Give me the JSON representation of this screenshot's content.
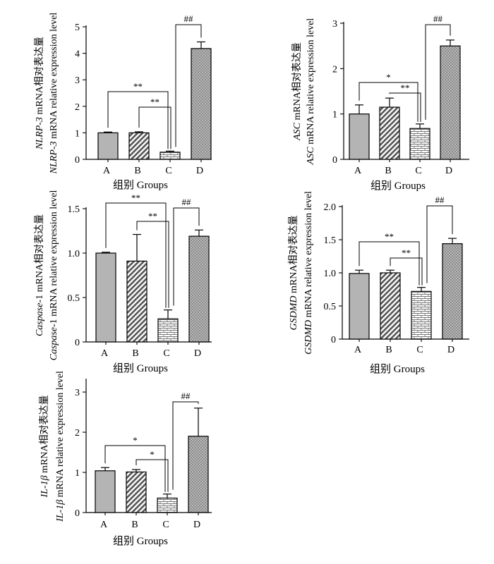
{
  "chart_data": [
    {
      "type": "bar",
      "categories": [
        "A",
        "B",
        "C",
        "D"
      ],
      "values": [
        1.0,
        1.0,
        0.27,
        4.18
      ],
      "errors": [
        0.03,
        0.04,
        0.04,
        0.25
      ],
      "ylim": [
        0,
        5
      ],
      "yticks": [
        "0",
        "1",
        "2",
        "3",
        "4",
        "5"
      ],
      "xlabel": "组别 Groups",
      "ylabel_cn_gene": "NLRP-3",
      "ylabel_cn_rest": " mRNA相对表达量",
      "ylabel_en_gene": "NLRP-3",
      "ylabel_en_rest": " mRNA relative expression level",
      "significance": [
        {
          "from": 0,
          "to": 2,
          "label": "**"
        },
        {
          "from": 1,
          "to": 2,
          "label": "**"
        },
        {
          "from": 2,
          "to": 3,
          "label": "##"
        }
      ]
    },
    {
      "type": "bar",
      "categories": [
        "A",
        "B",
        "C",
        "D"
      ],
      "values": [
        1.0,
        1.15,
        0.68,
        2.5
      ],
      "errors": [
        0.2,
        0.2,
        0.1,
        0.13
      ],
      "ylim": [
        0,
        3
      ],
      "yticks": [
        "0",
        "1",
        "2",
        "3"
      ],
      "xlabel": "组别 Groups",
      "ylabel_cn_gene": "ASC",
      "ylabel_cn_rest": " mRNA相对表达量",
      "ylabel_en_gene": "ASC",
      "ylabel_en_rest": " mRNA relative expression level",
      "significance": [
        {
          "from": 0,
          "to": 2,
          "label": "*"
        },
        {
          "from": 1,
          "to": 2,
          "label": "**"
        },
        {
          "from": 2,
          "to": 3,
          "label": "##"
        }
      ]
    },
    {
      "type": "bar",
      "categories": [
        "A",
        "B",
        "C",
        "D"
      ],
      "values": [
        1.0,
        0.91,
        0.26,
        1.19
      ],
      "errors": [
        0.01,
        0.3,
        0.1,
        0.07
      ],
      "ylim": [
        0,
        1.5
      ],
      "yticks": [
        "0",
        "0.5",
        "1.0",
        "1.5"
      ],
      "xlabel": "组别 Groups",
      "ylabel_cn_gene": "Caspase",
      "ylabel_cn_rest": "-1 mRNA相对表达量",
      "ylabel_en_gene": "Caspase",
      "ylabel_en_rest": "-1 mRNA relative expression level",
      "significance": [
        {
          "from": 0,
          "to": 2,
          "label": "**"
        },
        {
          "from": 1,
          "to": 2,
          "label": "**"
        },
        {
          "from": 2,
          "to": 3,
          "label": "##"
        }
      ]
    },
    {
      "type": "bar",
      "categories": [
        "A",
        "B",
        "C",
        "D"
      ],
      "values": [
        0.99,
        1.0,
        0.72,
        1.44
      ],
      "errors": [
        0.05,
        0.04,
        0.06,
        0.08
      ],
      "ylim": [
        0,
        2.0
      ],
      "yticks": [
        "0",
        "0.5",
        "1.0",
        "1.5",
        "2.0"
      ],
      "xlabel": "组别 Groups",
      "ylabel_cn_gene": "GSDMD",
      "ylabel_cn_rest": " mRNA相对表达量",
      "ylabel_en_gene": "GSDMD",
      "ylabel_en_rest": " mRNA relative expression level",
      "significance": [
        {
          "from": 0,
          "to": 2,
          "label": "**"
        },
        {
          "from": 1,
          "to": 2,
          "label": "**"
        },
        {
          "from": 2,
          "to": 3,
          "label": "##"
        }
      ]
    },
    {
      "type": "bar",
      "categories": [
        "A",
        "B",
        "C",
        "D"
      ],
      "values": [
        1.04,
        1.01,
        0.36,
        1.9
      ],
      "errors": [
        0.08,
        0.06,
        0.1,
        0.7
      ],
      "ylim": [
        0,
        3.3
      ],
      "yticks": [
        "0",
        "1",
        "2",
        "3"
      ],
      "xlabel": "组别 Groups",
      "ylabel_cn_gene": "IL-1β",
      "ylabel_cn_rest": " mRNA相对表达量",
      "ylabel_en_gene": "IL-1β",
      "ylabel_en_rest": " mRNA relative expression level",
      "significance": [
        {
          "from": 0,
          "to": 2,
          "label": "*"
        },
        {
          "from": 1,
          "to": 2,
          "label": "*"
        },
        {
          "from": 2,
          "to": 3,
          "label": "##"
        }
      ]
    }
  ]
}
